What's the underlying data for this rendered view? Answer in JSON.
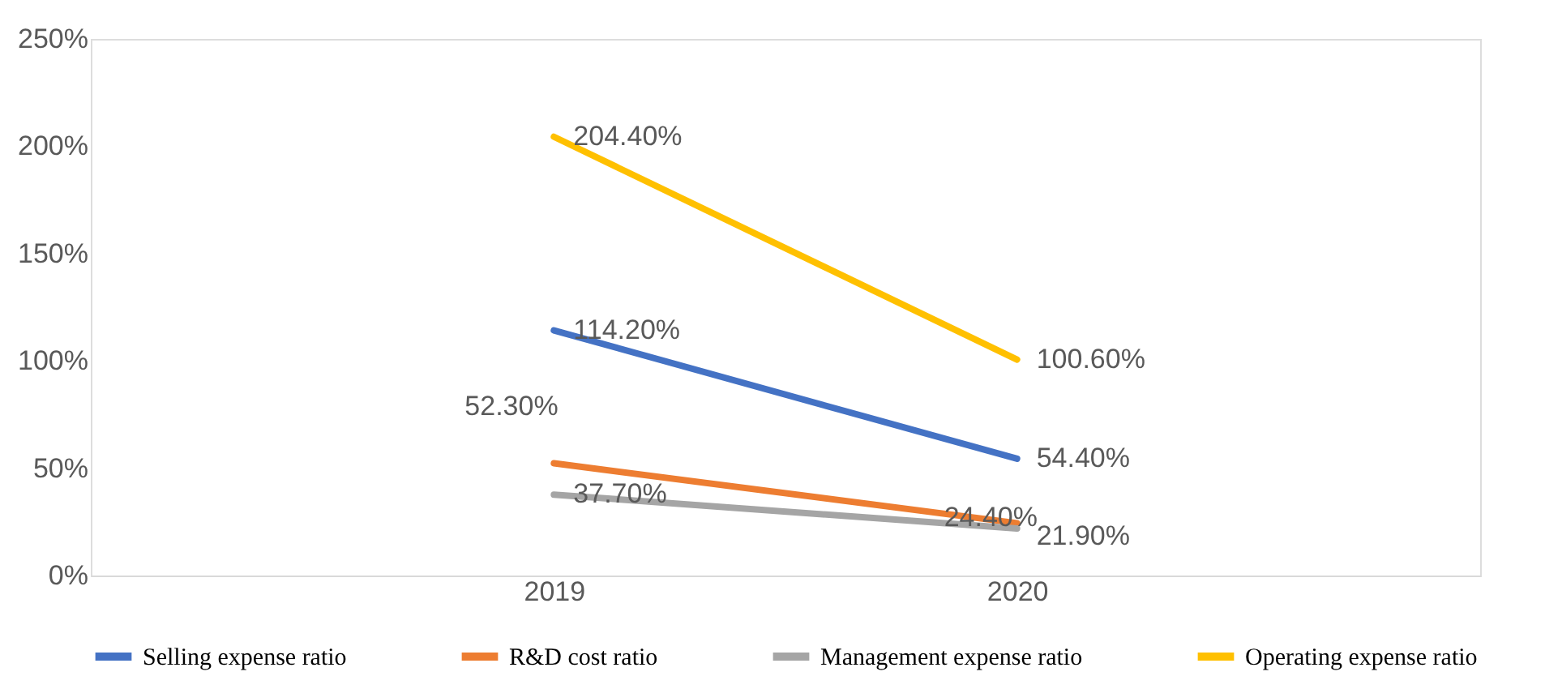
{
  "chart_data": {
    "type": "line",
    "categories": [
      "2019",
      "2020"
    ],
    "series": [
      {
        "name": "Selling expense ratio",
        "color": "#4472c4",
        "values": [
          114.2,
          54.4
        ],
        "value_labels": [
          "114.20%",
          "54.40%"
        ]
      },
      {
        "name": "R&D cost ratio",
        "color": "#ed7d31",
        "values": [
          52.3,
          24.4
        ],
        "value_labels": [
          "52.30%",
          "24.40%"
        ]
      },
      {
        "name": "Management expense ratio",
        "color": "#a5a5a5",
        "values": [
          37.7,
          21.9
        ],
        "value_labels": [
          "37.70%",
          "21.90%"
        ]
      },
      {
        "name": "Operating expense ratio",
        "color": "#ffc000",
        "values": [
          204.4,
          100.6
        ],
        "value_labels": [
          "204.40%",
          "100.60%"
        ]
      }
    ],
    "ylim": [
      0,
      250
    ],
    "yticks": [
      {
        "value": 0,
        "label": "0%"
      },
      {
        "value": 50,
        "label": "50%"
      },
      {
        "value": 100,
        "label": "100%"
      },
      {
        "value": 150,
        "label": "150%"
      },
      {
        "value": 200,
        "label": "200%"
      },
      {
        "value": 250,
        "label": "250%"
      }
    ],
    "grid": false,
    "legend": "bottom",
    "marker": "none",
    "line_style": "solid"
  }
}
